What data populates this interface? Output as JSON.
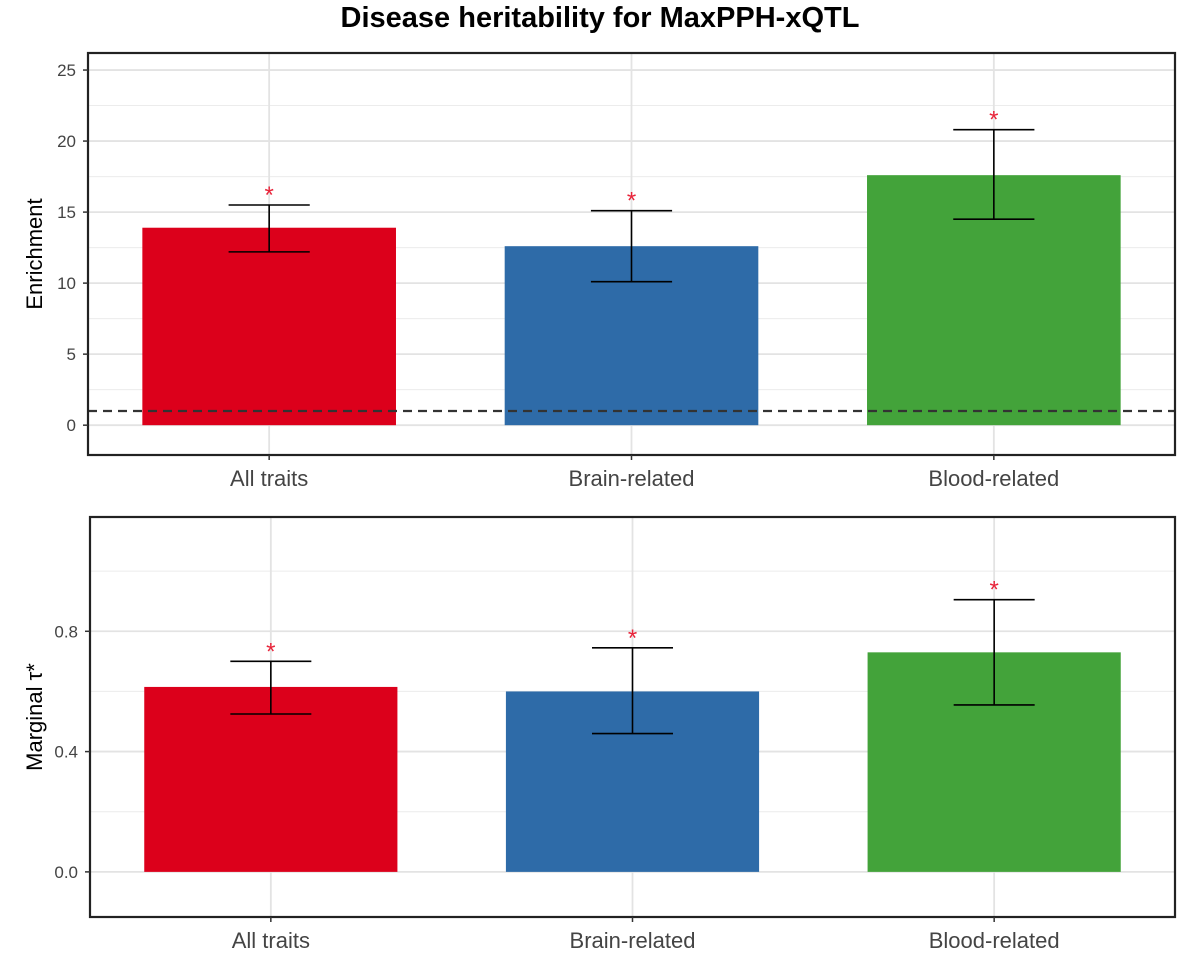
{
  "title": "Disease heritability for MaxPPH-xQTL",
  "colors": {
    "all_traits": "#dc001b",
    "brain_related": "#2e6ba8",
    "blood_related": "#43a33a",
    "significance": "#e8243a",
    "reference_line": "#333333"
  },
  "chart_data": [
    {
      "type": "bar",
      "categories": [
        "All traits",
        "Brain-related",
        "Blood-related"
      ],
      "values": [
        13.9,
        12.6,
        17.6
      ],
      "error_low": [
        12.2,
        10.1,
        14.5
      ],
      "error_high": [
        15.5,
        15.1,
        20.8
      ],
      "significance_marker": "*",
      "significance": [
        true,
        true,
        true
      ],
      "reference_line": 1,
      "ylabel": "Enrichment",
      "ylim": [
        -2.1,
        26.2
      ],
      "yticks": [
        "0",
        "5",
        "10",
        "15",
        "20",
        "25"
      ],
      "grid": true,
      "legend": "none"
    },
    {
      "type": "bar",
      "categories": [
        "All traits",
        "Brain-related",
        "Blood-related"
      ],
      "values": [
        0.615,
        0.6,
        0.73
      ],
      "error_low": [
        0.525,
        0.46,
        0.555
      ],
      "error_high": [
        0.7,
        0.745,
        0.905
      ],
      "significance_marker": "*",
      "significance": [
        true,
        true,
        true
      ],
      "ylabel": "Marginal τ*",
      "ylim": [
        -0.15,
        1.18
      ],
      "yticks": [
        "0.0",
        "0.4",
        "0.8"
      ],
      "grid": true,
      "legend": "none"
    }
  ]
}
